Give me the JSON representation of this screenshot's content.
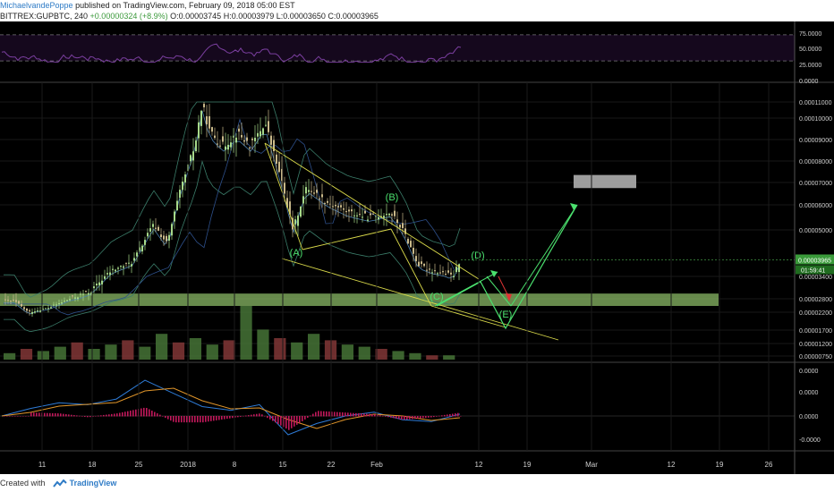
{
  "header": {
    "author": "MichaelvandePoppe",
    "published": "published on TradingView.com, February 09, 2018 05:00 EST",
    "symbol": "BITTREX:GUPBTC, 240",
    "change": "+0.00000324 (+8.9%)",
    "ohlc_o": "O:0.00003745",
    "ohlc_h": "H:0.00003979",
    "ohlc_l": "L:0.00003650",
    "ohlc_c": "C:0.00003965",
    "price": "0.00003965"
  },
  "footer": {
    "created_with": "Created with",
    "brand": "TradingView"
  },
  "colors": {
    "background": "#000000",
    "candle_up": "#a7d98a",
    "candle_down": "#c9b98a",
    "support_zone": "#8fbf6a",
    "target_zone": "#b9b9b9",
    "wave_labels": "#4be06e",
    "rsi": "#7b3fa0",
    "macd": "#2e7bd6",
    "signal": "#e0952a",
    "histogram": "#c2185b",
    "pattern_lines": "#d8d84a"
  },
  "chart_data": [
    {
      "type": "candlestick",
      "pane": "price",
      "x_ticks": [
        "11",
        "18",
        "25",
        "2018",
        "8",
        "15",
        "22",
        "Feb",
        "12",
        "19",
        "Mar",
        "12",
        "19",
        "26"
      ],
      "y_ticks": [
        "0.00011000",
        "0.00010000",
        "0.00009000",
        "0.00008000",
        "0.00007000",
        "0.00006000",
        "0.00005000",
        "0.00003400",
        "0.00002800",
        "0.00002200",
        "0.00001700",
        "0.00001200",
        "0.00000750"
      ],
      "y_tick_values": [
        0.00011,
        0.0001,
        9e-05,
        8e-05,
        7e-05,
        6e-05,
        5e-05,
        3.4e-05,
        2.8e-05,
        2.2e-05,
        1.7e-05,
        1.2e-05,
        7.5e-06
      ],
      "last_price_label": "0.00003965",
      "countdown_label": "01:59:41",
      "close_path": [
        [
          "Dec 7",
          2.7e-05
        ],
        [
          "Dec 9",
          2.2e-05
        ],
        [
          "Dec 12",
          2.4e-05
        ],
        [
          "Dec 15",
          2.8e-05
        ],
        [
          "Dec 18",
          3e-05
        ],
        [
          "Dec 21",
          3.6e-05
        ],
        [
          "Dec 24",
          3.9e-05
        ],
        [
          "Dec 27",
          5.2e-05
        ],
        [
          "Dec 29",
          4.5e-05
        ],
        [
          "Dec 31",
          6.8e-05
        ],
        [
          "Jan 2",
          8.8e-05
        ],
        [
          "Jan 3",
          0.000108
        ],
        [
          "Jan 4",
          9.4e-05
        ],
        [
          "Jan 6",
          8.7e-05
        ],
        [
          "Jan 8",
          9.3e-05
        ],
        [
          "Jan 10",
          8.7e-05
        ],
        [
          "Jan 12",
          9.8e-05
        ],
        [
          "Jan 14",
          7.5e-05
        ],
        [
          "Jan 16",
          5e-05
        ],
        [
          "Jan 18",
          6.8e-05
        ],
        [
          "Jan 21",
          6.1e-05
        ],
        [
          "Jan 24",
          5.7e-05
        ],
        [
          "Jan 27",
          5.5e-05
        ],
        [
          "Jan 30",
          5.7e-05
        ],
        [
          "Feb 1",
          4.9e-05
        ],
        [
          "Feb 3",
          3.8e-05
        ],
        [
          "Feb 5",
          3.6e-05
        ],
        [
          "Feb 7",
          3.5e-05
        ],
        [
          "Feb 8",
          3.4e-05
        ],
        [
          "Feb 9",
          3.97e-05
        ]
      ],
      "wave_labels": [
        "(A)",
        "(B)",
        "(C)",
        "(D)",
        "(E)"
      ],
      "support_zone": [
        2.48e-05,
        2.94e-05
      ],
      "target_zone": [
        6.75e-05,
        7.35e-05
      ]
    },
    {
      "type": "bar",
      "pane": "volume",
      "values": [
        3,
        5,
        4,
        6,
        8,
        5,
        7,
        9,
        6,
        12,
        8,
        10,
        7,
        9,
        25,
        14,
        10,
        8,
        12,
        9,
        7,
        6,
        5,
        4,
        3,
        2,
        2
      ]
    },
    {
      "type": "line",
      "pane": "rsi",
      "y_ticks": [
        "75.0000",
        "50.0000",
        "25.0000",
        "0.0000"
      ],
      "y_tick_values": [
        75,
        50,
        25,
        0
      ]
    },
    {
      "type": "line",
      "pane": "macd",
      "y_ticks": [
        "0.0000",
        "0.0000",
        "0.0000",
        "-0.0000"
      ],
      "series": [
        {
          "values": [
            0,
            0.2,
            0.35,
            0.3,
            0.45,
            0.95,
            0.6,
            0.25,
            0.15,
            0.3,
            -0.5,
            -0.2,
            0,
            0.1,
            -0.1,
            -0.15,
            0.05
          ]
        }
      ]
    }
  ]
}
